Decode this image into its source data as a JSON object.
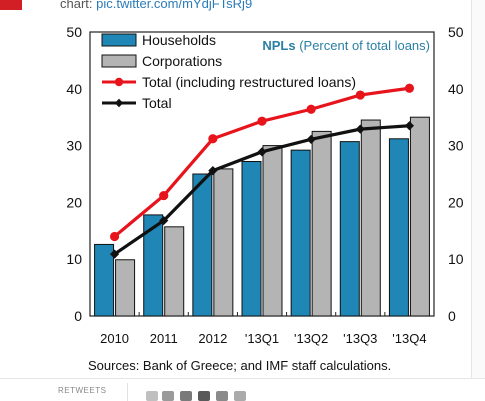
{
  "tweet": {
    "prefix": "chart:",
    "link": "pic.twitter.com/mYdjFTsRj9"
  },
  "footer": {
    "retweets_label": "RETWEETS"
  },
  "colors": {
    "households": "#1f86b5",
    "corporations": "#b4b4b4",
    "total_restructured": "#e8141c",
    "total": "#111111",
    "title": "#2a7fa3"
  },
  "chart_data": {
    "type": "bar",
    "title": "NPLs (Percent of total loans)",
    "title_parts": {
      "bold": "NPLs",
      "normal": "(Percent of total loans)"
    },
    "categories": [
      "2010",
      "2011",
      "2012",
      "'13Q1",
      "'13Q2",
      "'13Q3",
      "'13Q4"
    ],
    "series": [
      {
        "name": "Households",
        "kind": "bar",
        "values": [
          12.6,
          17.8,
          25.0,
          27.2,
          29.2,
          30.7,
          31.2
        ]
      },
      {
        "name": "Corporations",
        "kind": "bar",
        "values": [
          9.9,
          15.7,
          25.9,
          30.0,
          32.5,
          34.5,
          35.0
        ]
      },
      {
        "name": "Total (including restructured loans)",
        "kind": "line",
        "marker": "circle",
        "values": [
          14.0,
          21.2,
          31.2,
          34.3,
          36.4,
          38.9,
          40.1
        ]
      },
      {
        "name": "Total",
        "kind": "line",
        "marker": "diamond",
        "values": [
          10.9,
          16.8,
          25.6,
          28.9,
          31.1,
          32.9,
          33.5
        ]
      }
    ],
    "yticks": [
      0,
      10,
      20,
      30,
      40,
      50
    ],
    "ylim": [
      0,
      50
    ],
    "y2ticks": [
      0,
      10,
      20,
      30,
      40,
      50
    ],
    "legend_position": "top-left",
    "grid": false,
    "source": "Sources: Bank of Greece; and IMF staff calculations."
  }
}
